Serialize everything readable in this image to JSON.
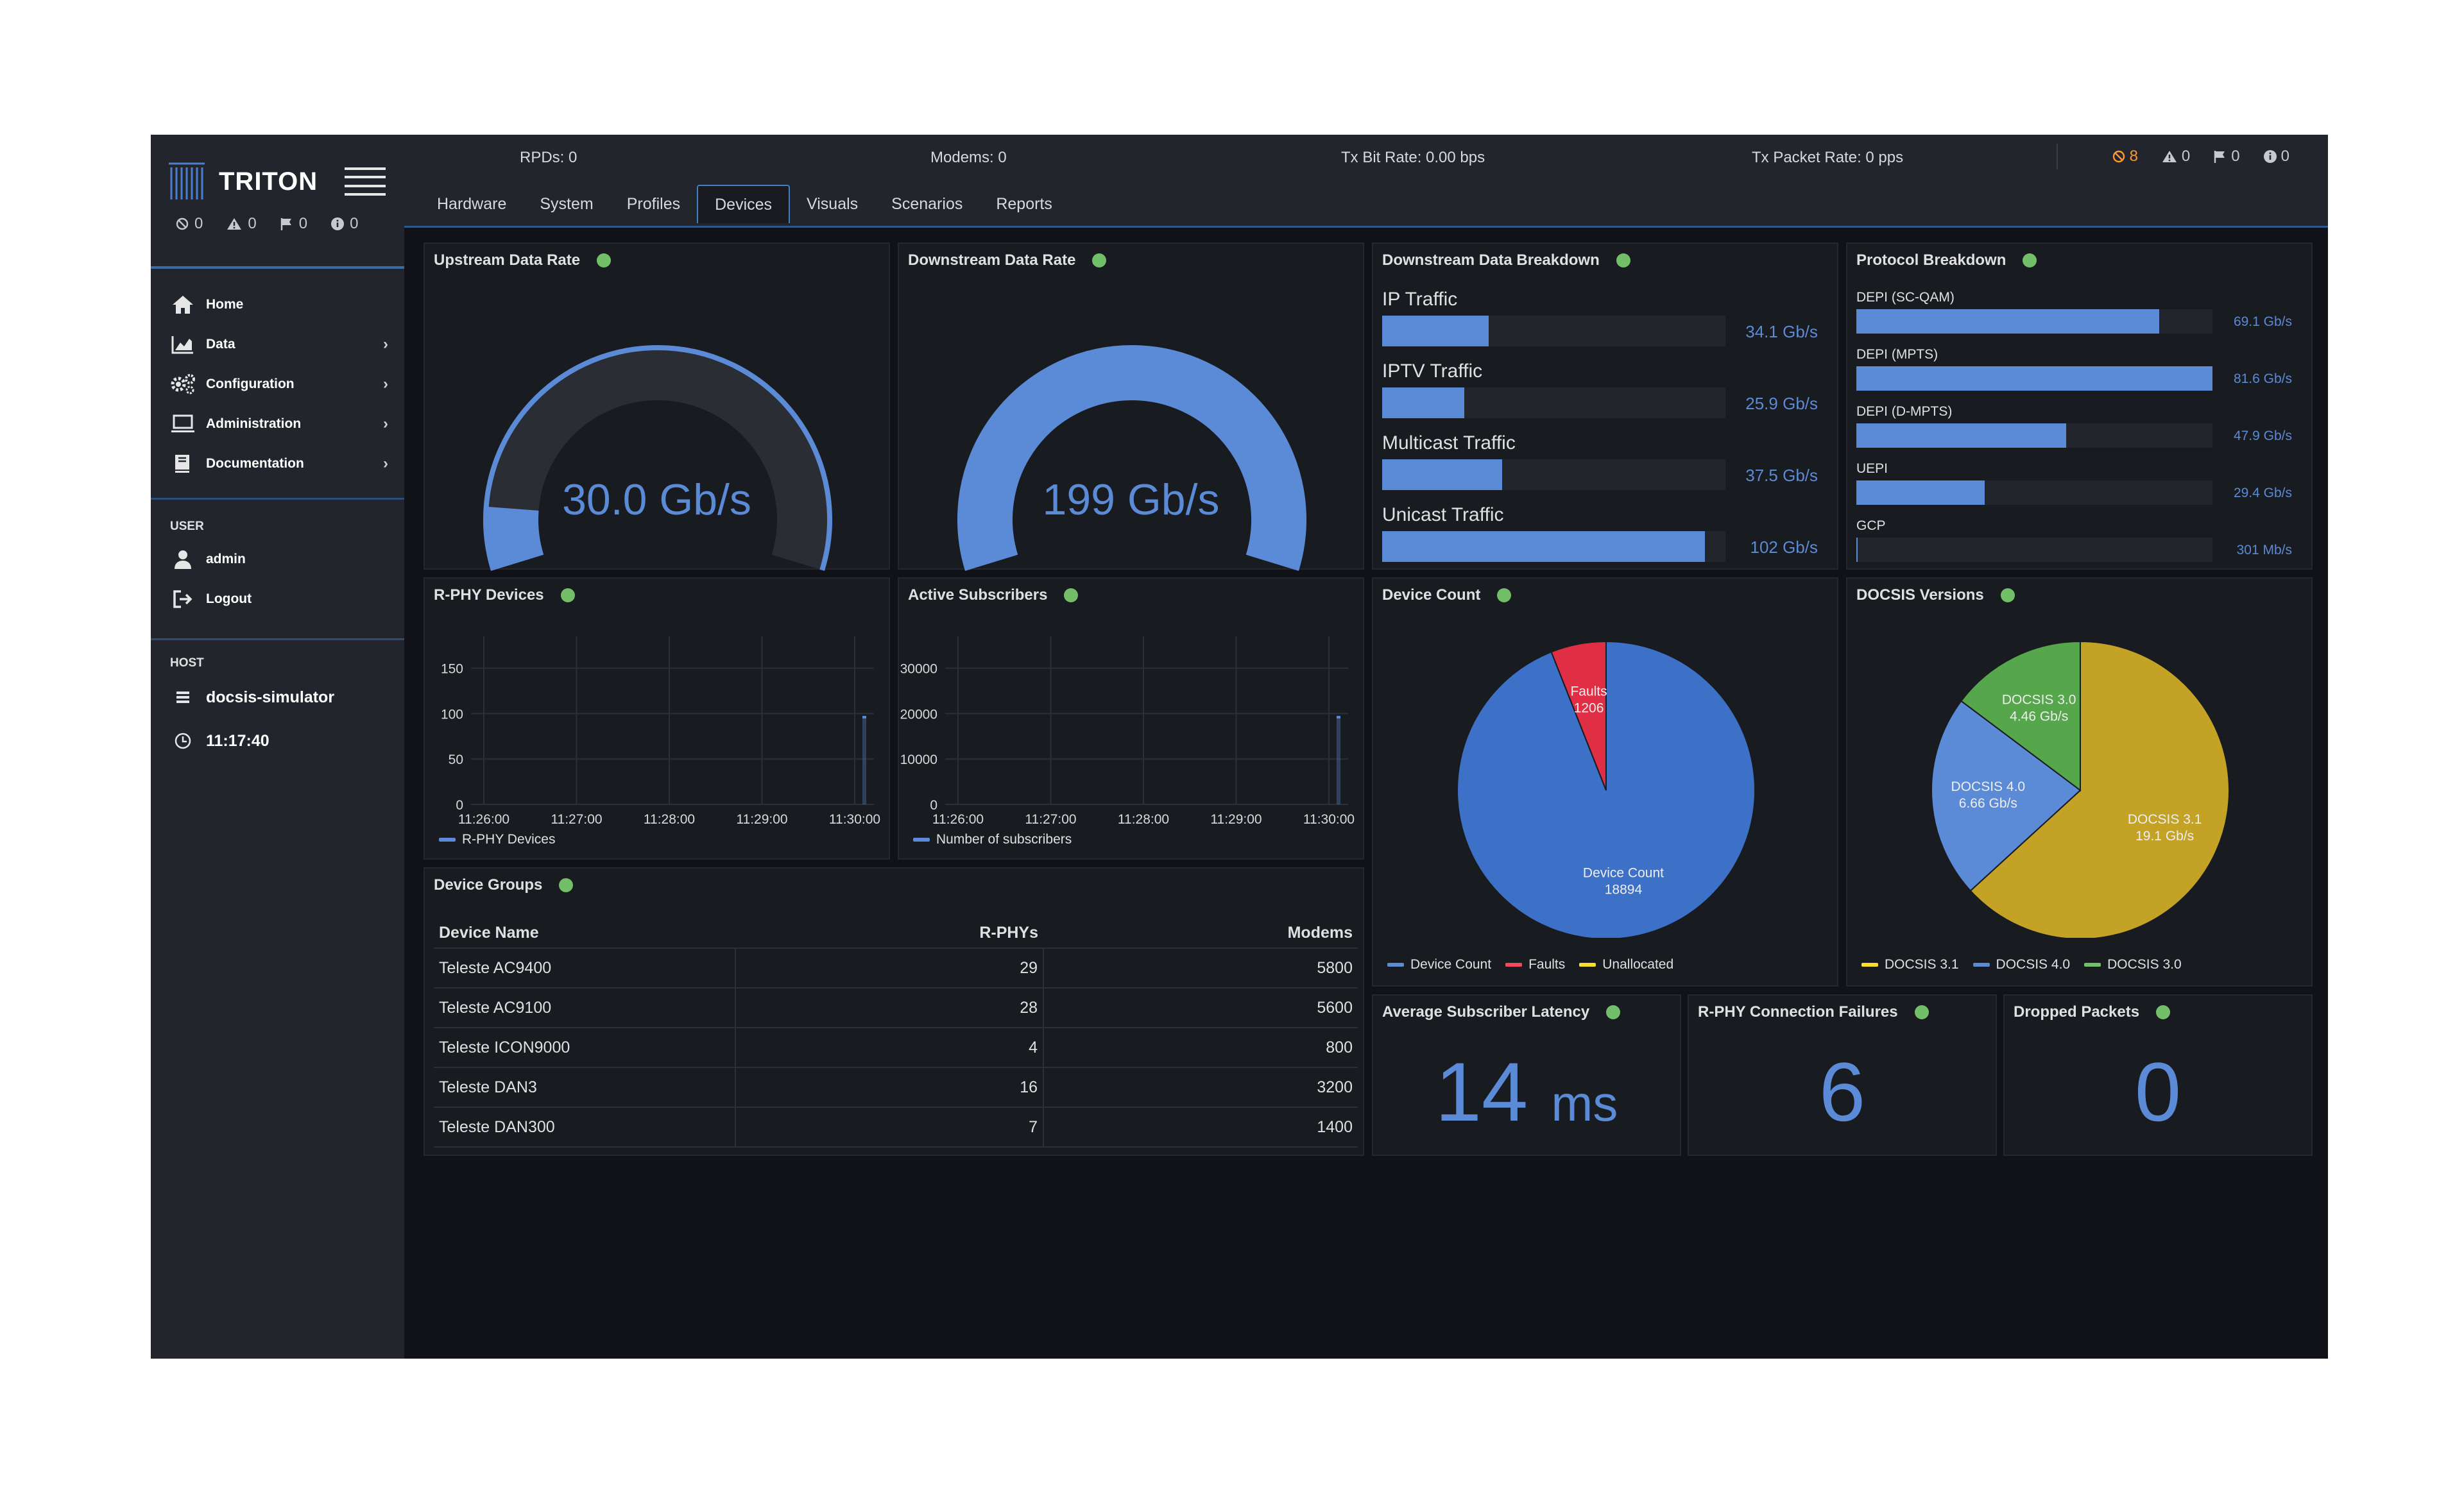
{
  "app": {
    "brand": "TRITON"
  },
  "side_status": [
    {
      "icon": "blocked-icon",
      "count": "0"
    },
    {
      "icon": "warning-icon",
      "count": "0"
    },
    {
      "icon": "flag-icon",
      "count": "0"
    },
    {
      "icon": "info-icon",
      "count": "0"
    }
  ],
  "nav": [
    {
      "label": "Home",
      "icon": "home-icon",
      "chevron": false
    },
    {
      "label": "Data",
      "icon": "chart-icon",
      "chevron": true
    },
    {
      "label": "Configuration",
      "icon": "gears-icon",
      "chevron": true
    },
    {
      "label": "Administration",
      "icon": "laptop-icon",
      "chevron": true
    },
    {
      "label": "Documentation",
      "icon": "book-icon",
      "chevron": true
    }
  ],
  "user": {
    "section": "USER",
    "name": "admin",
    "logout": "Logout"
  },
  "host": {
    "section": "HOST",
    "name": "docsis-simulator",
    "time": "11:17:40"
  },
  "topbar": {
    "rpds": "RPDs: 0",
    "modems": "Modems: 0",
    "tx_bit": "Tx Bit Rate: 0.00 bps",
    "tx_packet": "Tx Packet Rate: 0 pps",
    "alerts": [
      {
        "icon": "blocked-icon",
        "count": "8",
        "color": "#ff9830"
      },
      {
        "icon": "warning-icon",
        "count": "0",
        "color": "#c8c9cc"
      },
      {
        "icon": "flag-icon",
        "count": "0",
        "color": "#c8c9cc"
      },
      {
        "icon": "info-icon",
        "count": "0",
        "color": "#c8c9cc"
      }
    ]
  },
  "tabs": [
    "Hardware",
    "System",
    "Profiles",
    "Devices",
    "Visuals",
    "Scenarios",
    "Reports"
  ],
  "active_tab": "Devices",
  "panels": {
    "upstream": {
      "title": "Upstream Data Rate",
      "value": "30.0 Gb/s",
      "fraction": 0.1
    },
    "downstream": {
      "title": "Downstream Data Rate",
      "value": "199 Gb/s",
      "fraction": 1.0
    },
    "breakdown": {
      "title": "Downstream Data Breakdown",
      "items": [
        {
          "label": "IP Traffic",
          "value": "34.1 Gb/s",
          "fraction": 0.31
        },
        {
          "label": "IPTV Traffic",
          "value": "25.9 Gb/s",
          "fraction": 0.24
        },
        {
          "label": "Multicast Traffic",
          "value": "37.5 Gb/s",
          "fraction": 0.35
        },
        {
          "label": "Unicast Traffic",
          "value": "102 Gb/s",
          "fraction": 0.94
        }
      ]
    },
    "protocol": {
      "title": "Protocol Breakdown",
      "items": [
        {
          "label": "DEPI (SC-QAM)",
          "value": "69.1 Gb/s",
          "fraction": 0.85
        },
        {
          "label": "DEPI (MPTS)",
          "value": "81.6 Gb/s",
          "fraction": 1.0
        },
        {
          "label": "DEPI (D-MPTS)",
          "value": "47.9 Gb/s",
          "fraction": 0.59
        },
        {
          "label": "UEPI",
          "value": "29.4 Gb/s",
          "fraction": 0.36
        },
        {
          "label": "GCP",
          "value": "301 Mb/s",
          "fraction": 0.004
        }
      ]
    },
    "rphy": {
      "title": "R-PHY Devices",
      "legend": "R-PHY Devices"
    },
    "subs": {
      "title": "Active Subscribers",
      "legend": "Number of subscribers"
    },
    "device_count": {
      "title": "Device Count",
      "legend": [
        {
          "name": "Device Count",
          "color": "#5b8ad6"
        },
        {
          "name": "Faults",
          "color": "#f2495c"
        },
        {
          "name": "Unallocated",
          "color": "#fade2a"
        }
      ]
    },
    "docsis": {
      "title": "DOCSIS Versions",
      "legend": [
        {
          "name": "DOCSIS 3.1",
          "color": "#fade2a"
        },
        {
          "name": "DOCSIS 4.0",
          "color": "#5b8ad6"
        },
        {
          "name": "DOCSIS 3.0",
          "color": "#73bf69"
        }
      ]
    },
    "device_groups": {
      "title": "Device Groups",
      "columns": [
        "Device Name",
        "R-PHYs",
        "Modems"
      ],
      "rows": [
        [
          "Teleste AC9400",
          "29",
          "5800"
        ],
        [
          "Teleste AC9100",
          "28",
          "5600"
        ],
        [
          "Teleste ICON9000",
          "4",
          "800"
        ],
        [
          "Teleste DAN3",
          "16",
          "3200"
        ],
        [
          "Teleste DAN300",
          "7",
          "1400"
        ]
      ]
    },
    "latency": {
      "title": "Average Subscriber Latency",
      "value": "14",
      "unit": "ms"
    },
    "failures": {
      "title": "R-PHY Connection Failures",
      "value": "6"
    },
    "dropped": {
      "title": "Dropped Packets",
      "value": "0"
    }
  },
  "chart_data": [
    {
      "type": "area",
      "title": "R-PHY Devices",
      "x": [
        "11:26:00",
        "11:27:00",
        "11:28:00",
        "11:29:00",
        "11:30:00"
      ],
      "yticks": [
        0,
        50,
        100,
        150
      ],
      "ylim": [
        0,
        185
      ],
      "series": [
        {
          "name": "R-PHY Devices",
          "values": [
            null,
            null,
            null,
            null,
            96
          ]
        }
      ]
    },
    {
      "type": "area",
      "title": "Active Subscribers",
      "x": [
        "11:26:00",
        "11:27:00",
        "11:28:00",
        "11:29:00",
        "11:30:00"
      ],
      "yticks": [
        0,
        10000,
        20000,
        30000
      ],
      "ylim": [
        0,
        37000
      ],
      "series": [
        {
          "name": "Number of subscribers",
          "values": [
            null,
            null,
            null,
            null,
            19200
          ]
        }
      ]
    },
    {
      "type": "pie",
      "title": "Device Count",
      "slices": [
        {
          "name": "Device Count",
          "label": "Device Count",
          "value": 18894,
          "display": "18894",
          "color": "#3d71c7"
        },
        {
          "name": "Faults",
          "label": "Faults",
          "value": 1206,
          "display": "1206",
          "color": "#e02f44"
        },
        {
          "name": "Unallocated",
          "label": "Unallocated",
          "value": 0,
          "display": "",
          "color": "#fade2a"
        }
      ]
    },
    {
      "type": "pie",
      "title": "DOCSIS Versions",
      "slices": [
        {
          "name": "DOCSIS 3.1",
          "label": "DOCSIS 3.1",
          "value": 19.1,
          "display": "19.1 Gb/s",
          "color": "#c4a226"
        },
        {
          "name": "DOCSIS 4.0",
          "label": "DOCSIS 4.0",
          "value": 6.66,
          "display": "6.66 Gb/s",
          "color": "#5b8ad6"
        },
        {
          "name": "DOCSIS 3.0",
          "label": "DOCSIS 3.0",
          "value": 4.46,
          "display": "4.46 Gb/s",
          "color": "#56a64b"
        }
      ]
    }
  ]
}
